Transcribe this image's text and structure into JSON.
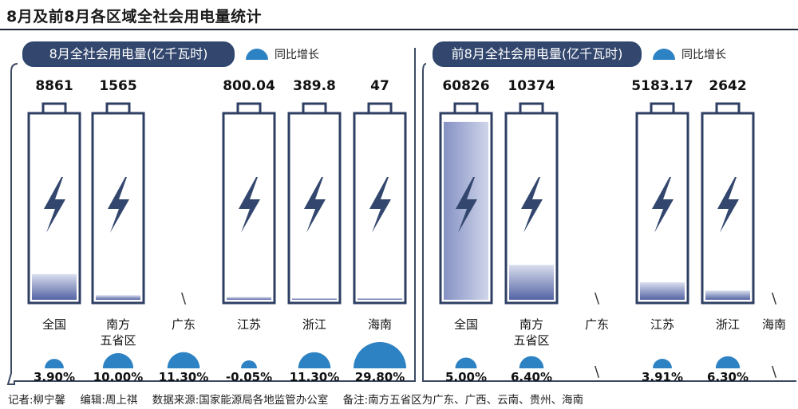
{
  "title": "8月及前8月各区域全社会用电量统计",
  "footer": {
    "reporter": "记者:柳宁馨",
    "editor": "编辑:周上祺",
    "source": "数据来源:国家能源局各地监管办公室",
    "note": "备注:南方五省区为广东、广西、云南、贵州、海南"
  },
  "colors": {
    "frame": "#3a4a63",
    "battery_outline": "#2e3f63",
    "fill_top": "#d6dcec",
    "fill_bottom": "#5667a6",
    "bolt": "#33476e",
    "dome": "#2d82c4",
    "header_bg": "#33476e"
  },
  "chart_data": [
    {
      "type": "bar",
      "title": "8月全社会用电量(亿千瓦时)",
      "legend": "同比增长",
      "categories": [
        "全国",
        "南方\n五省区",
        "广东",
        "江苏",
        "浙江",
        "海南"
      ],
      "values": [
        8861,
        1565,
        null,
        800.04,
        389.8,
        47
      ],
      "value_labels": [
        "8861",
        "1565",
        "",
        "800.04",
        "389.8",
        "47"
      ],
      "fill_fraction": [
        0.14,
        0.025,
        null,
        0.015,
        0.007,
        0.001
      ],
      "yoy_growth": [
        3.9,
        10.0,
        11.3,
        -0.05,
        11.3,
        29.8
      ],
      "yoy_labels": [
        "3.90%",
        "10.00%",
        "11.30%",
        "-0.05%",
        "11.30%",
        "29.80%"
      ],
      "missing_mark": "\\"
    },
    {
      "type": "bar",
      "title": "前8月全社会用电量(亿千瓦时)",
      "legend": "同比增长",
      "categories": [
        "全国",
        "南方\n五省区",
        "广东",
        "江苏",
        "浙江",
        "海南"
      ],
      "values": [
        60826,
        10374,
        null,
        5183.17,
        2642,
        null
      ],
      "value_labels": [
        "60826",
        "10374",
        "",
        "5183.17",
        "2642",
        ""
      ],
      "fill_fraction": [
        0.97,
        0.19,
        null,
        0.095,
        0.05,
        null
      ],
      "yoy_growth": [
        5.0,
        6.4,
        null,
        3.91,
        6.3,
        null
      ],
      "yoy_labels": [
        "5.00%",
        "6.40%",
        "",
        "3.91%",
        "6.30%",
        ""
      ],
      "missing_mark": "\\"
    }
  ]
}
